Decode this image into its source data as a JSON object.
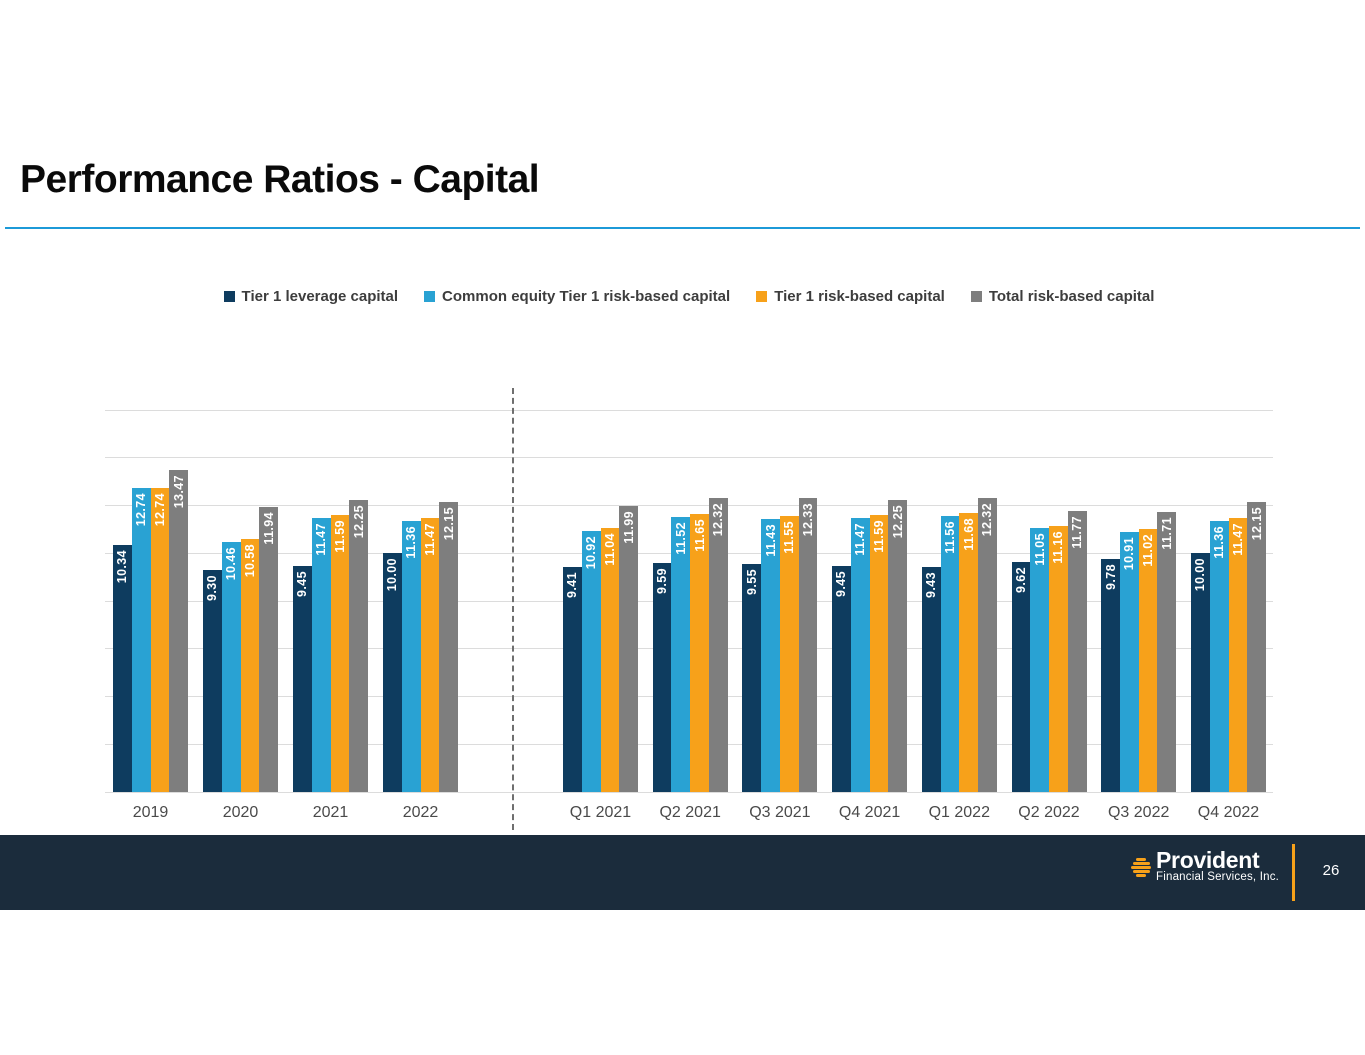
{
  "title": "Performance Ratios - Capital",
  "colors": {
    "title_rule": "#1c9ad8",
    "footer_bg": "#1b2c3c",
    "brand_orange": "#f7a11a"
  },
  "chart_data": {
    "type": "bar",
    "title": "Performance Ratios - Capital",
    "categories": [
      "2019",
      "2020",
      "2021",
      "2022",
      "Q1 2021",
      "Q2 2021",
      "Q3 2021",
      "Q4 2021",
      "Q1 2022",
      "Q2 2022",
      "Q3 2022",
      "Q4 2022"
    ],
    "series": [
      {
        "name": "Tier 1 leverage capital",
        "color": "#0e3c5f",
        "values": [
          10.34,
          9.3,
          9.45,
          10.0,
          9.41,
          9.59,
          9.55,
          9.45,
          9.43,
          9.62,
          9.78,
          10.0
        ]
      },
      {
        "name": "Common equity Tier 1 risk-based capital",
        "color": "#29a2d3",
        "values": [
          12.74,
          10.46,
          11.47,
          11.36,
          10.92,
          11.52,
          11.43,
          11.47,
          11.56,
          11.05,
          10.91,
          11.36
        ]
      },
      {
        "name": "Tier 1 risk-based capital",
        "color": "#f7a11a",
        "values": [
          12.74,
          10.58,
          11.59,
          11.47,
          11.04,
          11.65,
          11.55,
          11.59,
          11.68,
          11.16,
          11.02,
          11.47
        ]
      },
      {
        "name": "Total risk-based capital",
        "color": "#7e7e7e",
        "values": [
          13.47,
          11.94,
          12.25,
          12.15,
          11.99,
          12.32,
          12.33,
          12.25,
          12.32,
          11.77,
          11.71,
          12.15
        ]
      }
    ],
    "ylim": [
      0,
      16
    ],
    "gridline_step": 2,
    "grid": true,
    "y_axis_labels_visible": false,
    "legend_position": "top",
    "value_labels": "each bar labeled with value to 2 decimals, rotated 90°, white bold, inside top of bar",
    "divider_note": "vertical dashed line separates annual section (2019-2022) from quarterly section (Q1 2021-Q4 2022)"
  },
  "footer": {
    "brand": "Provident",
    "brand_sub": "Financial Services, Inc.",
    "page_number": "26"
  }
}
